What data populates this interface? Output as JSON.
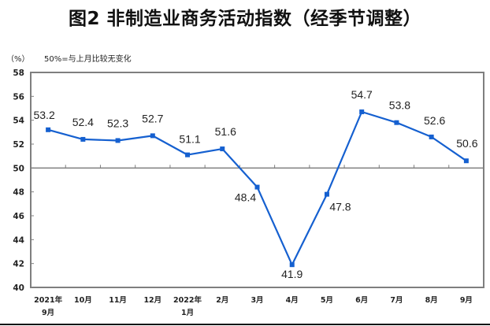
{
  "header": {
    "title": "图2 非制造业商务活动指数（经季节调整）",
    "unit_label": "（%）",
    "note": "50%=与上月比较无变化"
  },
  "colors": {
    "series_line": "#1560d0",
    "frame": "#7f7f7f",
    "axis_text": "#222222",
    "value_label": "#222222"
  },
  "chart_data": {
    "type": "line",
    "title": "图2 非制造业商务活动指数（经季节调整）",
    "xlabel": "",
    "ylabel": "（%）",
    "annotation": "50%=与上月比较无变化",
    "categories": [
      "2021年\n9月",
      "10月",
      "11月",
      "12月",
      "2022年\n1月",
      "2月",
      "3月",
      "4月",
      "5月",
      "6月",
      "7月",
      "8月",
      "9月"
    ],
    "series": [
      {
        "name": "非制造业商务活动指数",
        "values": [
          53.2,
          52.4,
          52.3,
          52.7,
          51.1,
          51.6,
          48.4,
          41.9,
          47.8,
          54.7,
          53.8,
          52.6,
          50.6
        ]
      }
    ],
    "ylim": [
      40,
      58
    ],
    "yticks": [
      40,
      42,
      44,
      46,
      48,
      50,
      52,
      54,
      56,
      58
    ],
    "reference_line": 50,
    "grid": false,
    "legend": "none",
    "data_labels": true
  }
}
